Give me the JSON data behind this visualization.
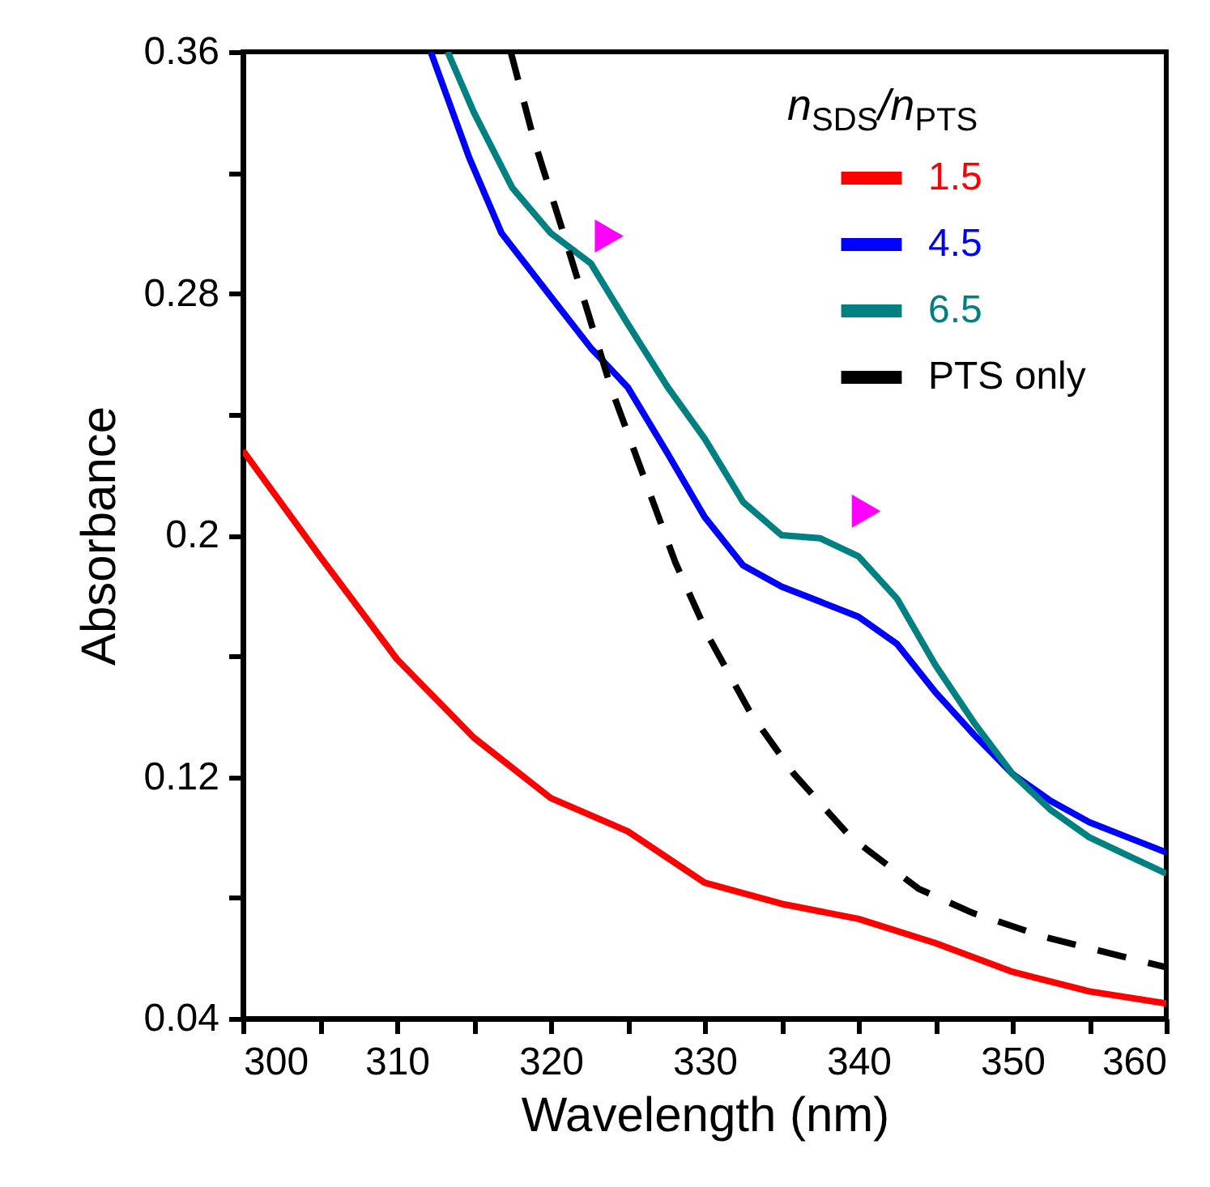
{
  "chart_data": {
    "type": "line",
    "xlabel": "Wavelength (nm)",
    "ylabel": "Absorbance",
    "legend_title": "n$_{SDS}$/n$_{PTS}$",
    "legend": "top right",
    "xlim": [
      300,
      360
    ],
    "xticks": [
      300,
      {
        "value": 305,
        "label": null
      },
      310,
      {
        "value": 315,
        "label": null
      },
      320,
      {
        "value": 325,
        "label": null
      },
      330,
      {
        "value": 335,
        "label": null
      },
      340,
      {
        "value": 345,
        "label": null
      },
      350,
      {
        "value": 355,
        "label": null
      },
      360
    ],
    "ylim": [
      0.04,
      0.36
    ],
    "yticks": [
      0.04,
      {
        "value": 0.08,
        "label": null
      },
      0.12,
      {
        "value": 0.16,
        "label": null
      },
      0.2,
      {
        "value": 0.24,
        "label": null
      },
      0.28,
      {
        "value": 0.32,
        "label": null
      },
      0.36
    ],
    "series": [
      {
        "name": "1.5",
        "color": "#ff0000",
        "line_style": "solid",
        "x": [
          300,
          305,
          310,
          315,
          320,
          325,
          330,
          335,
          340,
          345,
          350,
          355,
          360
        ],
        "values": [
          0.228,
          0.193,
          0.159,
          0.133,
          0.113,
          0.102,
          0.085,
          0.078,
          0.073,
          0.065,
          0.0555,
          0.049,
          0.045
        ]
      },
      {
        "name": "4.5",
        "color": "#0000ff",
        "line_style": "solid",
        "x": [
          312.2,
          314.7,
          316.8,
          320,
          322.6,
          325,
          327.6,
          330,
          332.5,
          335,
          337.5,
          340,
          342.5,
          345,
          347.5,
          350,
          352.5,
          355,
          357.5,
          360
        ],
        "values": [
          0.36,
          0.325,
          0.3,
          0.279,
          0.262,
          0.249,
          0.227,
          0.206,
          0.19,
          0.183,
          0.178,
          0.173,
          0.164,
          0.148,
          0.134,
          0.121,
          0.112,
          0.105,
          0.1,
          0.095
        ]
      },
      {
        "name": "6.5",
        "color": "#008080",
        "line_style": "solid",
        "x": [
          313.3,
          315,
          317.5,
          320,
          322.6,
          325,
          327.6,
          330,
          332.5,
          335,
          337.5,
          340,
          342.5,
          345,
          347.5,
          350,
          352.5,
          355,
          357.5,
          360
        ],
        "values": [
          0.36,
          0.34,
          0.315,
          0.3,
          0.29,
          0.27,
          0.249,
          0.232,
          0.211,
          0.2,
          0.199,
          0.193,
          0.179,
          0.157,
          0.138,
          0.121,
          0.109,
          0.1,
          0.094,
          0.088
        ]
      },
      {
        "name": "PTS only",
        "color": "#000000",
        "line_style": "dashed",
        "x": [
          317.4,
          318.9,
          320.7,
          322.4,
          323.9,
          326,
          328.1,
          330.3,
          333,
          335.8,
          339.5,
          343.9,
          347.4,
          352.1,
          356.8,
          360
        ],
        "values": [
          0.36,
          0.331,
          0.302,
          0.274,
          0.249,
          0.22,
          0.191,
          0.166,
          0.141,
          0.121,
          0.1,
          0.083,
          0.075,
          0.067,
          0.061,
          0.057
        ]
      },
      {
        "type": "scatter",
        "marker": "triangle",
        "color": "#ff00ff",
        "x": [
          323.8,
          340.5
        ],
        "values": [
          0.299,
          0.208
        ]
      }
    ]
  }
}
